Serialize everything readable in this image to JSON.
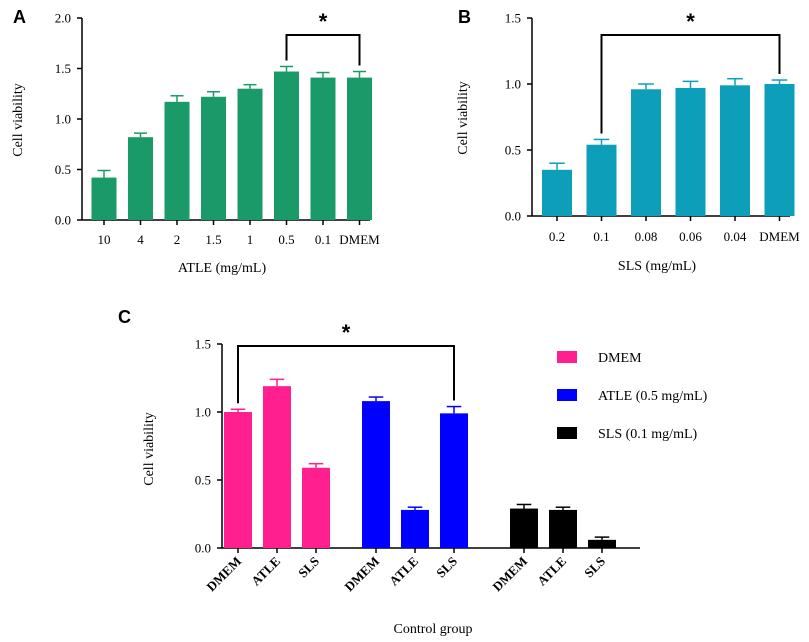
{
  "chart_data": [
    {
      "panel": "A",
      "type": "bar",
      "categories": [
        "10",
        "4",
        "2",
        "1.5",
        "1",
        "0.5",
        "0.1",
        "DMEM"
      ],
      "values": [
        0.42,
        0.82,
        1.17,
        1.22,
        1.3,
        1.47,
        1.41,
        1.41
      ],
      "errors": [
        0.07,
        0.04,
        0.06,
        0.05,
        0.04,
        0.05,
        0.05,
        0.06
      ],
      "xlabel": "ATLE (mg/mL)",
      "ylabel": "Cell viability",
      "ylim": [
        0,
        2.0
      ],
      "yticks": [
        "0.0",
        "0.5",
        "1.0",
        "1.5",
        "2.0"
      ],
      "color": "#1a9a68",
      "significance": {
        "from": 5,
        "to": 7,
        "label": "*"
      }
    },
    {
      "panel": "B",
      "type": "bar",
      "categories": [
        "0.2",
        "0.1",
        "0.08",
        "0.06",
        "0.04",
        "DMEM"
      ],
      "values": [
        0.35,
        0.54,
        0.96,
        0.97,
        0.99,
        1.0
      ],
      "errors": [
        0.05,
        0.04,
        0.04,
        0.05,
        0.05,
        0.03
      ],
      "xlabel": "SLS (mg/mL)",
      "ylabel": "Cell viability",
      "ylim": [
        0,
        1.5
      ],
      "yticks": [
        "0.0",
        "0.5",
        "1.0",
        "1.5"
      ],
      "color": "#0d9fb9",
      "significance": {
        "from": 1,
        "to": 5,
        "label": "*"
      }
    },
    {
      "panel": "C",
      "type": "bar",
      "categories": [
        "DMEM",
        "ATLE",
        "SLS"
      ],
      "series": [
        {
          "name": "DMEM",
          "color": "#ff1f8e",
          "values": [
            1.0,
            1.19,
            0.59
          ],
          "errors": [
            0.02,
            0.05,
            0.03
          ]
        },
        {
          "name": "ATLE (0.5 mg/mL)",
          "color": "#0000ff",
          "values": [
            1.08,
            0.28,
            0.99
          ],
          "errors": [
            0.03,
            0.02,
            0.05
          ]
        },
        {
          "name": "SLS (0.1 mg/mL)",
          "color": "#000000",
          "values": [
            0.29,
            0.28,
            0.06
          ],
          "errors": [
            0.03,
            0.02,
            0.02
          ]
        }
      ],
      "xlabel": "Control group",
      "ylabel": "Cell viability",
      "ylim": [
        0,
        1.5
      ],
      "yticks": [
        "0.0",
        "0.5",
        "1.0",
        "1.5"
      ],
      "significance": {
        "from_series": 0,
        "from_index": 0,
        "to_series": 1,
        "to_index": 2,
        "label": "*"
      }
    }
  ]
}
